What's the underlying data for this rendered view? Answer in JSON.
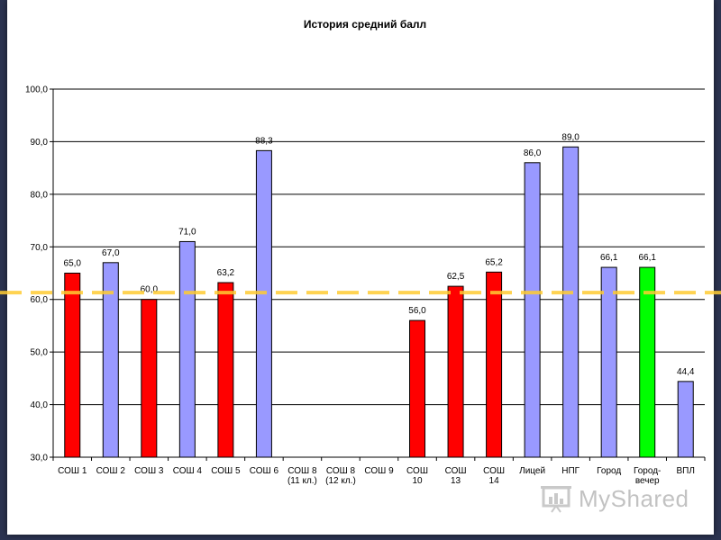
{
  "colors": {
    "red": "#ff0000",
    "blue": "#9999ff",
    "green": "#00ff00",
    "reference_line": "#ffcc33",
    "gridline": "#000000",
    "frame_background": "#2b3350"
  },
  "chart_data": {
    "type": "bar",
    "title": "История средний балл",
    "xlabel": "",
    "ylabel": "",
    "ylim": [
      30,
      100
    ],
    "yticks": [
      "30,0",
      "40,0",
      "50,0",
      "60,0",
      "70,0",
      "80,0",
      "90,0",
      "100,0"
    ],
    "grid": true,
    "legend": "none",
    "categories": [
      [
        "СОШ 1"
      ],
      [
        "СОШ 2"
      ],
      [
        "СОШ 3"
      ],
      [
        "СОШ 4"
      ],
      [
        "СОШ 5"
      ],
      [
        "СОШ 6"
      ],
      [
        "СОШ 8",
        "(11 кл.)"
      ],
      [
        "СОШ 8",
        "(12 кл.)"
      ],
      [
        "СОШ 9"
      ],
      [
        "СОШ",
        "10"
      ],
      [
        "СОШ",
        "13"
      ],
      [
        "СОШ",
        "14"
      ],
      [
        "Лицей"
      ],
      [
        "НПГ"
      ],
      [
        "Город"
      ],
      [
        "Город-",
        "вечер"
      ],
      [
        "ВПЛ"
      ]
    ],
    "values": [
      65.0,
      67.0,
      60.0,
      71.0,
      63.2,
      88.3,
      null,
      null,
      null,
      56.0,
      62.5,
      65.2,
      86.0,
      89.0,
      66.1,
      66.1,
      44.4
    ],
    "value_labels": [
      "65,0",
      "67,0",
      "60,0",
      "71,0",
      "63,2",
      "88,3",
      "",
      "",
      "",
      "56,0",
      "62,5",
      "65,2",
      "86,0",
      "89,0",
      "66,1",
      "66,1",
      "44,4"
    ],
    "bar_colors": [
      "red",
      "blue",
      "red",
      "blue",
      "red",
      "blue",
      "",
      "",
      "",
      "red",
      "red",
      "red",
      "blue",
      "blue",
      "blue",
      "green",
      "blue"
    ],
    "reference_line": {
      "value": 61.3,
      "style": "dashed"
    }
  },
  "watermark": {
    "text": "MyShared",
    "icon": "presentation-icon"
  }
}
